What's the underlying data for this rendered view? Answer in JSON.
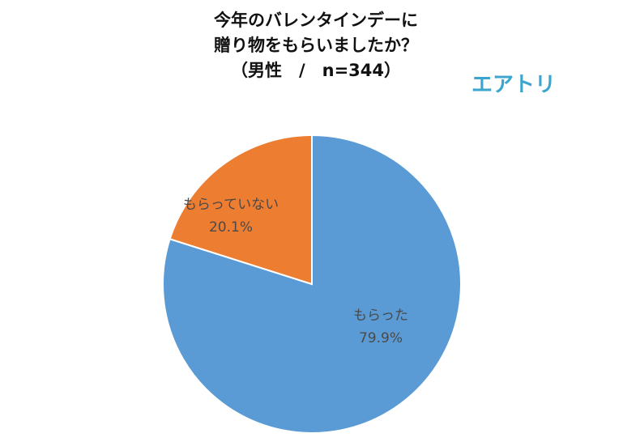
{
  "title_lines": [
    "今年のバレンタインデーに",
    "贈り物をもらいましたか？",
    "（男性　/　n=344）"
  ],
  "brand": {
    "name": "エアトリ",
    "color": "#3aa6d0"
  },
  "chart_data": {
    "type": "pie",
    "title": "今年のバレンタインデーに贈り物をもらいましたか？（男性　/　n=344）",
    "start_angle_deg": 0,
    "direction": "clockwise",
    "slices": [
      {
        "label": "もらった",
        "value": 79.9,
        "value_label": "79.9%",
        "color": "#5b9bd5"
      },
      {
        "label": "もらっていない",
        "value": 20.1,
        "value_label": "20.1%",
        "color": "#ed7d31"
      }
    ],
    "legend": "none"
  }
}
